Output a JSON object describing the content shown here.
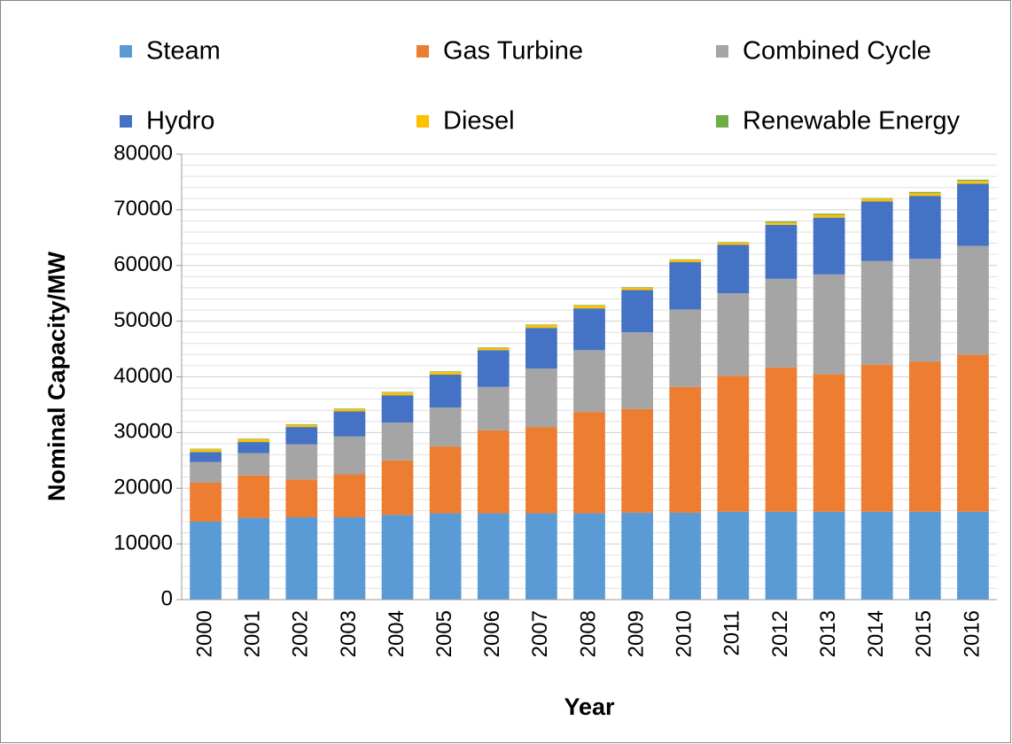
{
  "chart_data": {
    "type": "stacked_bar",
    "x_label": "Year",
    "y_label": "Nominal Capacity/MW",
    "categories": [
      "2000",
      "2001",
      "2002",
      "2003",
      "2004",
      "2005",
      "2006",
      "2007",
      "2008",
      "2009",
      "2010",
      "2011",
      "2012",
      "2013",
      "2014",
      "2015",
      "2016"
    ],
    "series": [
      {
        "name": "Steam",
        "color": "#5b9bd5",
        "values": [
          14000,
          14700,
          14800,
          14800,
          15200,
          15500,
          15500,
          15500,
          15500,
          15600,
          15600,
          15800,
          15800,
          15800,
          15800,
          15800,
          15800
        ]
      },
      {
        "name": "Gas Turbine",
        "color": "#ed7d31",
        "values": [
          7000,
          7600,
          6800,
          7700,
          9800,
          12000,
          14900,
          15500,
          18200,
          18600,
          22600,
          24400,
          25900,
          24700,
          26400,
          26900,
          28200
        ]
      },
      {
        "name": "Combined Cycle",
        "color": "#a5a5a5",
        "values": [
          3700,
          4000,
          6300,
          6800,
          6800,
          7000,
          7800,
          10500,
          11100,
          13800,
          13900,
          14800,
          15900,
          17900,
          18600,
          18500,
          19500
        ]
      },
      {
        "name": "Hydro",
        "color": "#4472c4",
        "values": [
          1800,
          2000,
          3100,
          4500,
          4900,
          5900,
          6600,
          7300,
          7500,
          7600,
          8500,
          8700,
          9700,
          10200,
          10700,
          11300,
          11200
        ]
      },
      {
        "name": "Diesel",
        "color": "#ffc000",
        "values": [
          500,
          500,
          400,
          400,
          500,
          500,
          400,
          500,
          500,
          400,
          400,
          400,
          400,
          500,
          500,
          500,
          500
        ]
      },
      {
        "name": "Renewable Energy",
        "color": "#70ad47",
        "values": [
          100,
          100,
          100,
          100,
          100,
          100,
          100,
          100,
          100,
          100,
          100,
          100,
          200,
          200,
          100,
          200,
          200
        ]
      }
    ],
    "ylim": [
      0,
      80000
    ],
    "yticks": [
      0,
      10000,
      20000,
      30000,
      40000,
      50000,
      60000,
      70000,
      80000
    ],
    "minor_yticks": [
      2000,
      4000,
      6000,
      8000,
      12000,
      14000,
      16000,
      18000,
      22000,
      24000,
      26000,
      28000,
      32000,
      34000,
      36000,
      38000,
      42000,
      44000,
      46000,
      48000,
      52000,
      54000,
      56000,
      58000,
      62000,
      64000,
      66000,
      68000,
      72000,
      74000,
      76000,
      78000
    ],
    "grid": true,
    "legend": "top"
  }
}
